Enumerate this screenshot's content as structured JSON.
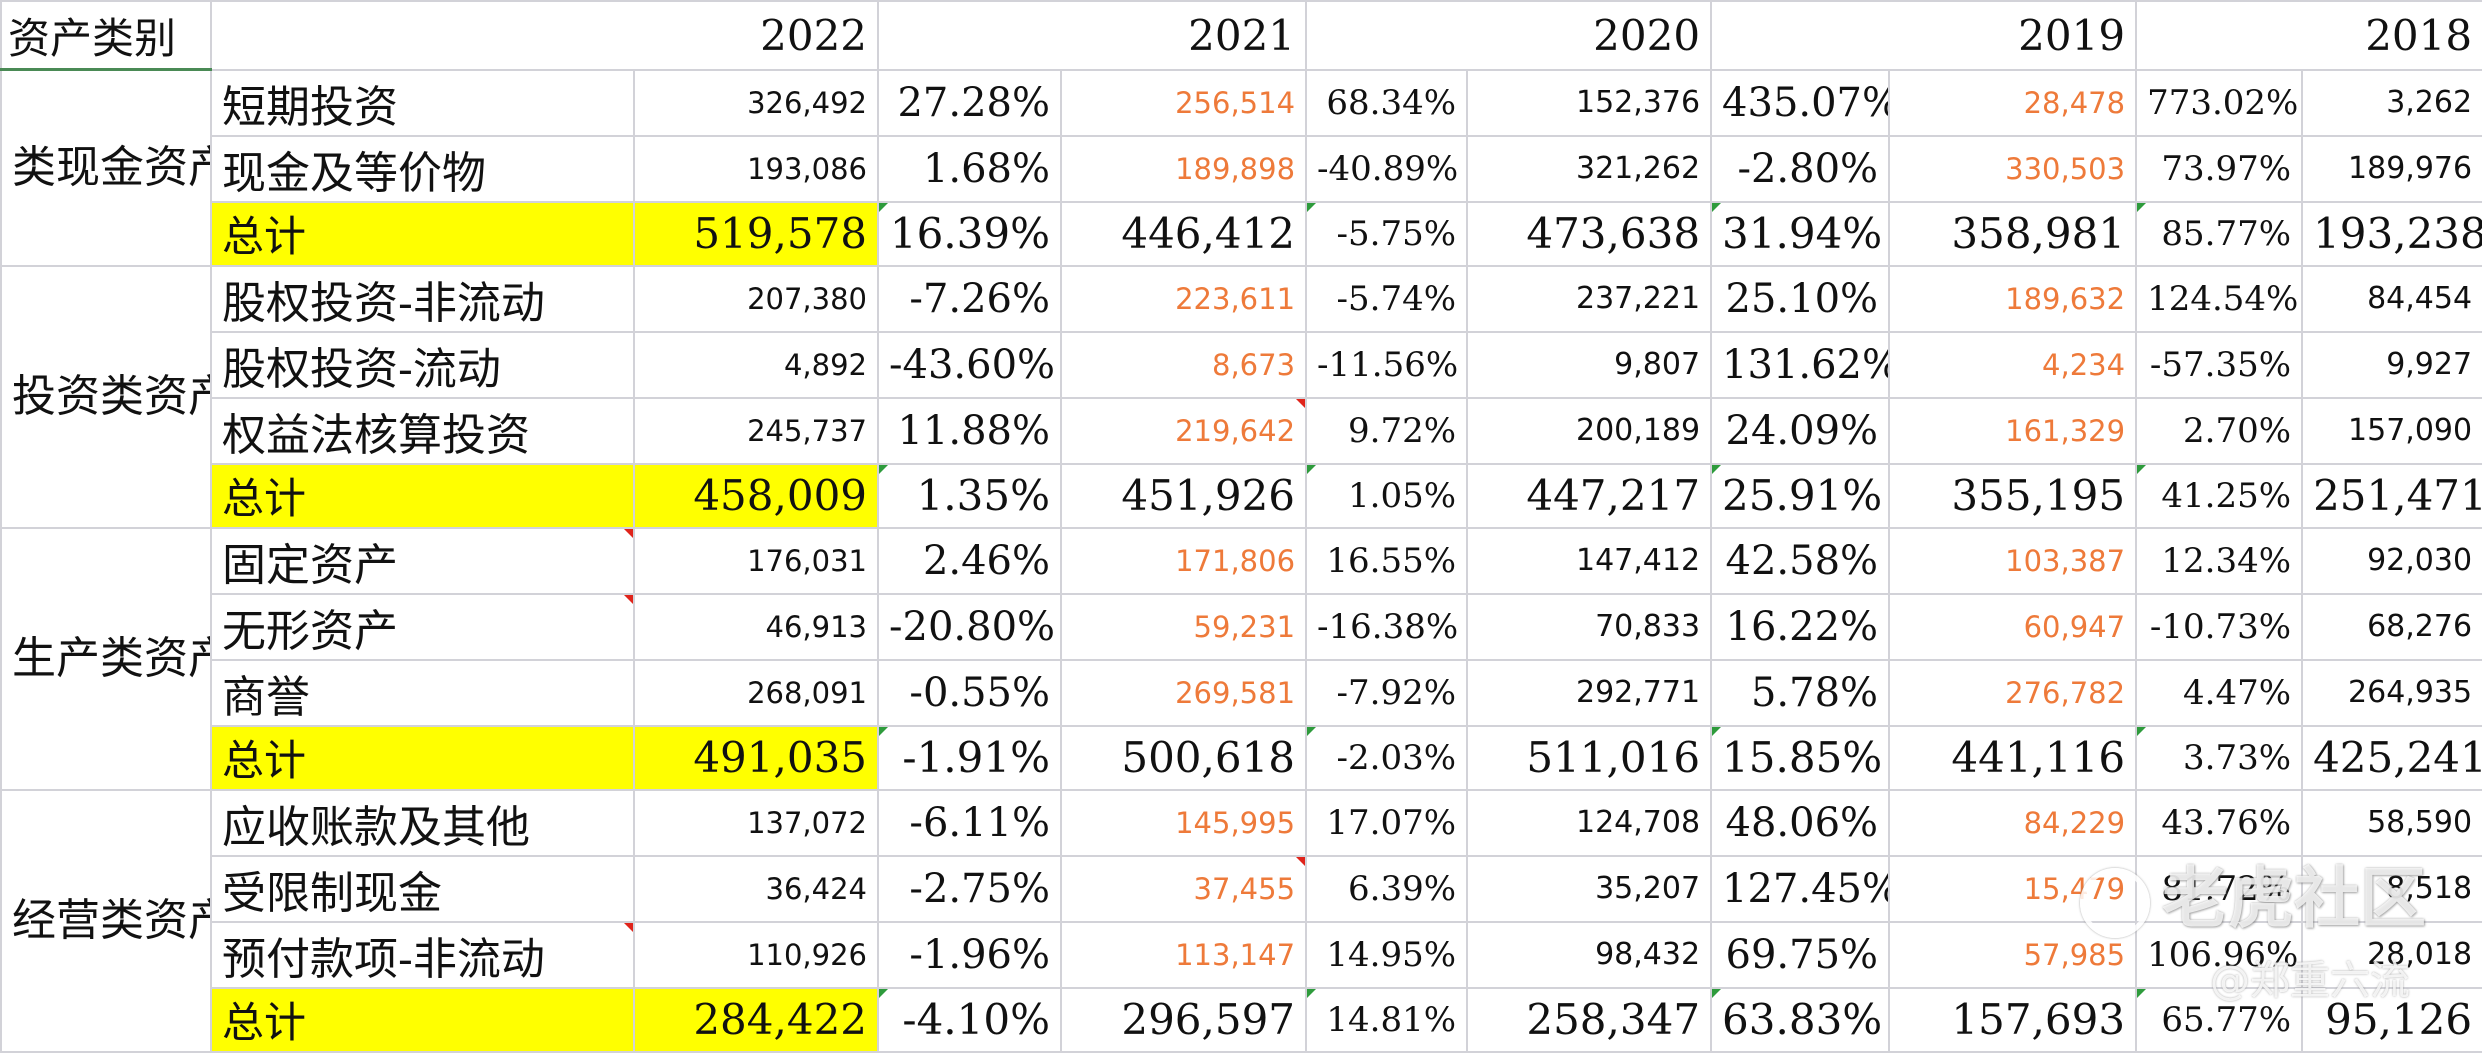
{
  "header": {
    "category": "资产类别",
    "years": [
      "2022",
      "2021",
      "2020",
      "2019",
      "2018"
    ]
  },
  "groups": [
    {
      "category": "类现金资产",
      "rows": [
        {
          "name": "短期投资",
          "v2022": "326,492",
          "p2022": "27.28%",
          "v2021": "256,514",
          "p2021": "68.34%",
          "v2020": "152,376",
          "p2020": "435.07%",
          "v2019": "28,478",
          "p2019": "773.02%",
          "v2018": "3,262"
        },
        {
          "name": "现金及等价物",
          "v2022": "193,086",
          "p2022": "1.68%",
          "v2021": "189,898",
          "p2021": "-40.89%",
          "v2020": "321,262",
          "p2020": "-2.80%",
          "v2019": "330,503",
          "p2019": "73.97%",
          "v2018": "189,976"
        }
      ],
      "total": {
        "name": "总计",
        "v2022": "519,578",
        "p2022": "16.39%",
        "v2021": "446,412",
        "p2021": "-5.75%",
        "v2020": "473,638",
        "p2020": "31.94%",
        "v2019": "358,981",
        "p2019": "85.77%",
        "v2018": "193,238"
      }
    },
    {
      "category": "投资类资产",
      "rows": [
        {
          "name": "股权投资-非流动",
          "v2022": "207,380",
          "p2022": "-7.26%",
          "v2021": "223,611",
          "p2021": "-5.74%",
          "v2020": "237,221",
          "p2020": "25.10%",
          "v2019": "189,632",
          "p2019": "124.54%",
          "v2018": "84,454"
        },
        {
          "name": "股权投资-流动",
          "v2022": "4,892",
          "p2022": "-43.60%",
          "v2021": "8,673",
          "p2021": "-11.56%",
          "v2020": "9,807",
          "p2020": "131.62%",
          "v2019": "4,234",
          "p2019": "-57.35%",
          "v2018": "9,927"
        },
        {
          "name": "权益法核算投资",
          "v2022": "245,737",
          "p2022": "11.88%",
          "v2021": "219,642",
          "p2021": "9.72%",
          "v2020": "200,189",
          "p2020": "24.09%",
          "v2019": "161,329",
          "p2019": "2.70%",
          "v2018": "157,090"
        }
      ],
      "total": {
        "name": "总计",
        "v2022": "458,009",
        "p2022": "1.35%",
        "v2021": "451,926",
        "p2021": "1.05%",
        "v2020": "447,217",
        "p2020": "25.91%",
        "v2019": "355,195",
        "p2019": "41.25%",
        "v2018": "251,471"
      }
    },
    {
      "category": "生产类资产",
      "rows": [
        {
          "name": "固定资产",
          "v2022": "176,031",
          "p2022": "2.46%",
          "v2021": "171,806",
          "p2021": "16.55%",
          "v2020": "147,412",
          "p2020": "42.58%",
          "v2019": "103,387",
          "p2019": "12.34%",
          "v2018": "92,030"
        },
        {
          "name": "无形资产",
          "v2022": "46,913",
          "p2022": "-20.80%",
          "v2021": "59,231",
          "p2021": "-16.38%",
          "v2020": "70,833",
          "p2020": "16.22%",
          "v2019": "60,947",
          "p2019": "-10.73%",
          "v2018": "68,276"
        },
        {
          "name": "商誉",
          "v2022": "268,091",
          "p2022": "-0.55%",
          "v2021": "269,581",
          "p2021": "-7.92%",
          "v2020": "292,771",
          "p2020": "5.78%",
          "v2019": "276,782",
          "p2019": "4.47%",
          "v2018": "264,935"
        }
      ],
      "total": {
        "name": "总计",
        "v2022": "491,035",
        "p2022": "-1.91%",
        "v2021": "500,618",
        "p2021": "-2.03%",
        "v2020": "511,016",
        "p2020": "15.85%",
        "v2019": "441,116",
        "p2019": "3.73%",
        "v2018": "425,241"
      }
    },
    {
      "category": "经营类资产",
      "rows": [
        {
          "name": "应收账款及其他",
          "v2022": "137,072",
          "p2022": "-6.11%",
          "v2021": "145,995",
          "p2021": "17.07%",
          "v2020": "124,708",
          "p2020": "48.06%",
          "v2019": "84,229",
          "p2019": "43.76%",
          "v2018": "58,590"
        },
        {
          "name": "受限制现金",
          "v2022": "36,424",
          "p2022": "-2.75%",
          "v2021": "37,455",
          "p2021": "6.39%",
          "v2020": "35,207",
          "p2020": "127.45%",
          "v2019": "15,479",
          "p2019": "81.72%",
          "v2018": "8,518"
        },
        {
          "name": "预付款项-非流动",
          "v2022": "110,926",
          "p2022": "-1.96%",
          "v2021": "113,147",
          "p2021": "14.95%",
          "v2020": "98,432",
          "p2020": "69.75%",
          "v2019": "57,985",
          "p2019": "106.96%",
          "v2018": "28,018"
        }
      ],
      "total": {
        "name": "总计",
        "v2022": "284,422",
        "p2022": "-4.10%",
        "v2021": "296,597",
        "p2021": "14.81%",
        "v2020": "258,347",
        "p2020": "63.83%",
        "v2019": "157,693",
        "p2019": "65.77%",
        "v2018": "95,126"
      }
    }
  ],
  "watermark": {
    "brand": "老虎社区",
    "author": "@郑重六流"
  },
  "colors": {
    "highlight": "#ffff00",
    "orange_value": "#ee7a3a",
    "header_rule": "#4a8a55"
  }
}
